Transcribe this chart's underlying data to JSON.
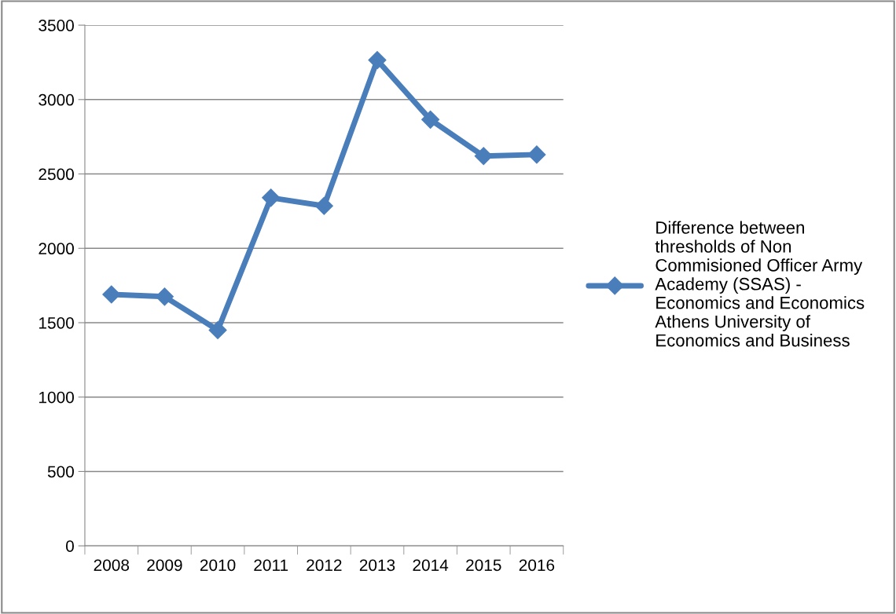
{
  "chart_data": {
    "type": "line",
    "categories": [
      "2008",
      "2009",
      "2010",
      "2011",
      "2012",
      "2013",
      "2014",
      "2015",
      "2016"
    ],
    "series": [
      {
        "name": "Difference between thresholds of Non Commisioned Officer Army Academy (SSAS) - Economics and Economics Athens University of Economics and Business",
        "color": "#4a7ebb",
        "values": [
          1690,
          1675,
          1450,
          2340,
          2285,
          3265,
          2865,
          2620,
          2630
        ]
      }
    ],
    "ylim": [
      0,
      3500
    ],
    "yticks": [
      0,
      500,
      1000,
      1500,
      2000,
      2500,
      3000,
      3500
    ],
    "grid": "y",
    "legend": "right",
    "marker": "diamond",
    "line_style": "solid"
  }
}
